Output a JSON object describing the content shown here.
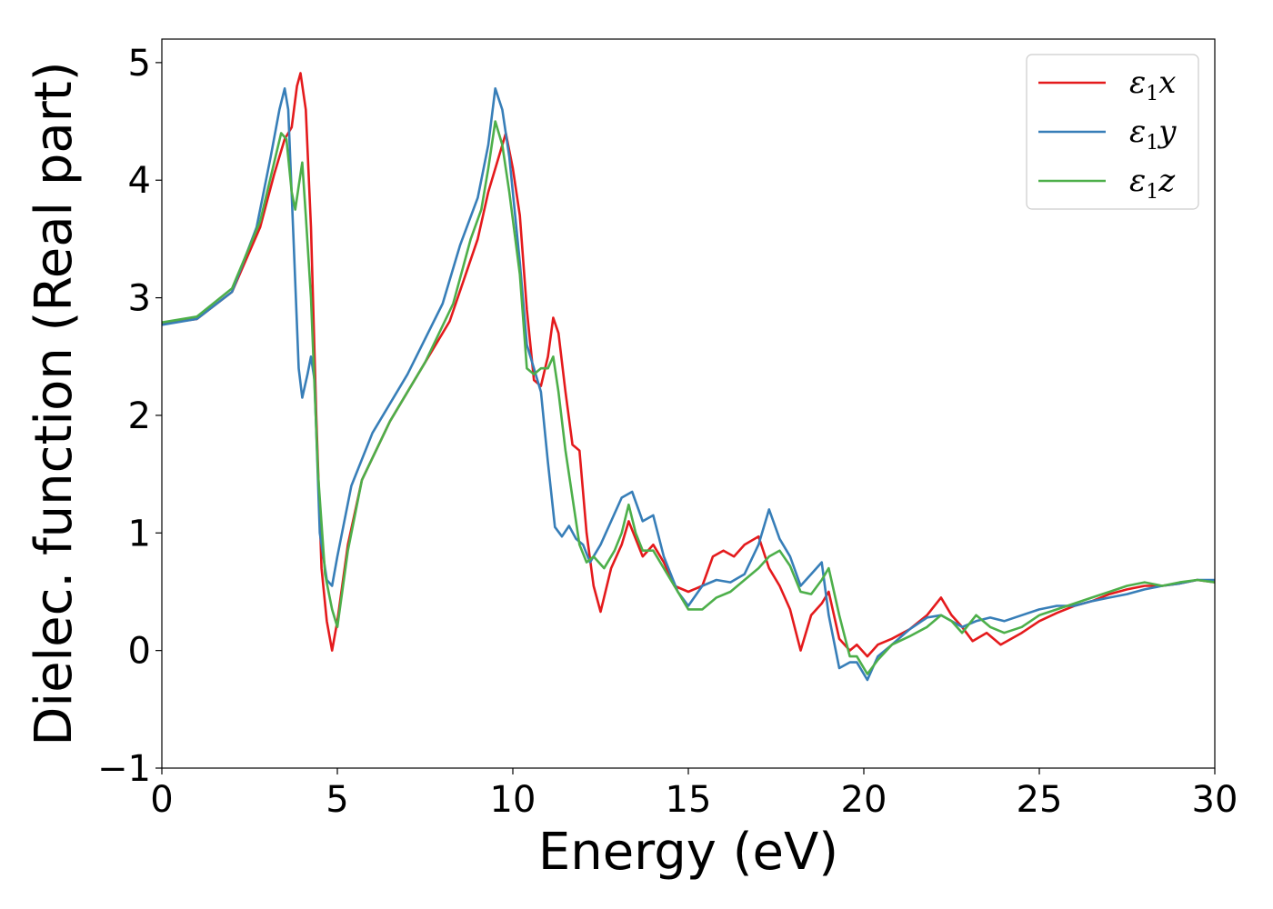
{
  "chart_data": {
    "type": "line",
    "xlabel": "Energy (eV)",
    "ylabel": "Dielec. function (Real part)",
    "xlim": [
      0,
      30
    ],
    "ylim": [
      -1,
      5.2
    ],
    "xticks": [
      0,
      5,
      10,
      15,
      20,
      25,
      30
    ],
    "xtick_labels": [
      "0",
      "5",
      "10",
      "15",
      "20",
      "25",
      "30"
    ],
    "yticks": [
      -1,
      0,
      1,
      2,
      3,
      4,
      5
    ],
    "ytick_labels": [
      "−1",
      "0",
      "1",
      "2",
      "3",
      "4",
      "5"
    ],
    "grid": false,
    "legend_position": "top-right",
    "series": [
      {
        "name": "ε1x",
        "legend": {
          "symbol": "ε",
          "sub": "1",
          "var": "x"
        },
        "color": "#e41a1c",
        "points": [
          [
            0,
            2.78
          ],
          [
            1.0,
            2.82
          ],
          [
            2.0,
            3.05
          ],
          [
            2.8,
            3.6
          ],
          [
            3.2,
            4.05
          ],
          [
            3.5,
            4.35
          ],
          [
            3.7,
            4.45
          ],
          [
            3.85,
            4.8
          ],
          [
            3.95,
            4.91
          ],
          [
            4.1,
            4.6
          ],
          [
            4.25,
            3.6
          ],
          [
            4.4,
            2.0
          ],
          [
            4.55,
            0.7
          ],
          [
            4.7,
            0.25
          ],
          [
            4.85,
            0.0
          ],
          [
            5.0,
            0.25
          ],
          [
            5.3,
            0.9
          ],
          [
            5.7,
            1.45
          ],
          [
            6.5,
            1.95
          ],
          [
            7.5,
            2.45
          ],
          [
            8.2,
            2.8
          ],
          [
            8.6,
            3.15
          ],
          [
            9.0,
            3.5
          ],
          [
            9.3,
            3.9
          ],
          [
            9.6,
            4.2
          ],
          [
            9.8,
            4.4
          ],
          [
            10.0,
            4.1
          ],
          [
            10.2,
            3.7
          ],
          [
            10.4,
            2.9
          ],
          [
            10.6,
            2.3
          ],
          [
            10.8,
            2.25
          ],
          [
            11.0,
            2.5
          ],
          [
            11.15,
            2.83
          ],
          [
            11.3,
            2.7
          ],
          [
            11.5,
            2.2
          ],
          [
            11.7,
            1.75
          ],
          [
            11.9,
            1.7
          ],
          [
            12.1,
            1.0
          ],
          [
            12.3,
            0.55
          ],
          [
            12.5,
            0.33
          ],
          [
            12.8,
            0.7
          ],
          [
            13.1,
            0.9
          ],
          [
            13.3,
            1.1
          ],
          [
            13.5,
            0.95
          ],
          [
            13.7,
            0.8
          ],
          [
            14.0,
            0.9
          ],
          [
            14.3,
            0.75
          ],
          [
            14.6,
            0.55
          ],
          [
            15.0,
            0.5
          ],
          [
            15.4,
            0.55
          ],
          [
            15.7,
            0.8
          ],
          [
            16.0,
            0.85
          ],
          [
            16.3,
            0.8
          ],
          [
            16.6,
            0.9
          ],
          [
            17.0,
            0.97
          ],
          [
            17.3,
            0.7
          ],
          [
            17.6,
            0.55
          ],
          [
            17.9,
            0.35
          ],
          [
            18.2,
            0.0
          ],
          [
            18.5,
            0.3
          ],
          [
            18.8,
            0.4
          ],
          [
            19.0,
            0.5
          ],
          [
            19.3,
            0.1
          ],
          [
            19.6,
            0.0
          ],
          [
            19.8,
            0.05
          ],
          [
            20.1,
            -0.05
          ],
          [
            20.4,
            0.05
          ],
          [
            20.8,
            0.1
          ],
          [
            21.3,
            0.18
          ],
          [
            21.8,
            0.3
          ],
          [
            22.2,
            0.45
          ],
          [
            22.5,
            0.3
          ],
          [
            22.8,
            0.2
          ],
          [
            23.1,
            0.08
          ],
          [
            23.5,
            0.15
          ],
          [
            23.9,
            0.05
          ],
          [
            24.5,
            0.15
          ],
          [
            25.0,
            0.25
          ],
          [
            25.5,
            0.32
          ],
          [
            26.0,
            0.38
          ],
          [
            26.5,
            0.42
          ],
          [
            27.0,
            0.48
          ],
          [
            27.5,
            0.52
          ],
          [
            28.0,
            0.55
          ],
          [
            28.5,
            0.55
          ],
          [
            29.0,
            0.57
          ],
          [
            29.5,
            0.6
          ],
          [
            30.0,
            0.58
          ]
        ]
      },
      {
        "name": "ε1y",
        "legend": {
          "symbol": "ε",
          "sub": "1",
          "var": "y"
        },
        "color": "#377eb8",
        "points": [
          [
            0,
            2.77
          ],
          [
            1.0,
            2.82
          ],
          [
            2.0,
            3.05
          ],
          [
            2.7,
            3.6
          ],
          [
            3.1,
            4.2
          ],
          [
            3.35,
            4.6
          ],
          [
            3.5,
            4.78
          ],
          [
            3.6,
            4.6
          ],
          [
            3.75,
            3.5
          ],
          [
            3.9,
            2.4
          ],
          [
            4.0,
            2.15
          ],
          [
            4.15,
            2.35
          ],
          [
            4.25,
            2.5
          ],
          [
            4.35,
            2.3
          ],
          [
            4.5,
            1.0
          ],
          [
            4.7,
            0.6
          ],
          [
            4.85,
            0.55
          ],
          [
            5.0,
            0.8
          ],
          [
            5.4,
            1.4
          ],
          [
            6.0,
            1.85
          ],
          [
            7.0,
            2.35
          ],
          [
            8.0,
            2.95
          ],
          [
            8.5,
            3.45
          ],
          [
            9.0,
            3.85
          ],
          [
            9.3,
            4.3
          ],
          [
            9.5,
            4.78
          ],
          [
            9.7,
            4.6
          ],
          [
            9.9,
            4.2
          ],
          [
            10.2,
            3.3
          ],
          [
            10.4,
            2.6
          ],
          [
            10.6,
            2.4
          ],
          [
            10.8,
            2.2
          ],
          [
            11.0,
            1.6
          ],
          [
            11.2,
            1.05
          ],
          [
            11.4,
            0.97
          ],
          [
            11.6,
            1.06
          ],
          [
            11.8,
            0.95
          ],
          [
            12.0,
            0.9
          ],
          [
            12.2,
            0.75
          ],
          [
            12.5,
            0.9
          ],
          [
            12.8,
            1.1
          ],
          [
            13.1,
            1.3
          ],
          [
            13.4,
            1.35
          ],
          [
            13.7,
            1.1
          ],
          [
            14.0,
            1.15
          ],
          [
            14.3,
            0.8
          ],
          [
            14.7,
            0.5
          ],
          [
            15.0,
            0.38
          ],
          [
            15.4,
            0.55
          ],
          [
            15.8,
            0.6
          ],
          [
            16.2,
            0.58
          ],
          [
            16.6,
            0.65
          ],
          [
            17.0,
            0.9
          ],
          [
            17.3,
            1.2
          ],
          [
            17.6,
            0.95
          ],
          [
            17.9,
            0.8
          ],
          [
            18.2,
            0.55
          ],
          [
            18.5,
            0.65
          ],
          [
            18.8,
            0.75
          ],
          [
            19.0,
            0.3
          ],
          [
            19.3,
            -0.15
          ],
          [
            19.6,
            -0.1
          ],
          [
            19.8,
            -0.1
          ],
          [
            20.1,
            -0.25
          ],
          [
            20.4,
            -0.05
          ],
          [
            20.8,
            0.05
          ],
          [
            21.3,
            0.18
          ],
          [
            21.8,
            0.28
          ],
          [
            22.2,
            0.3
          ],
          [
            22.5,
            0.25
          ],
          [
            22.8,
            0.2
          ],
          [
            23.2,
            0.25
          ],
          [
            23.6,
            0.28
          ],
          [
            24.0,
            0.25
          ],
          [
            24.5,
            0.3
          ],
          [
            25.0,
            0.35
          ],
          [
            25.5,
            0.38
          ],
          [
            26.0,
            0.38
          ],
          [
            26.5,
            0.42
          ],
          [
            27.0,
            0.45
          ],
          [
            27.5,
            0.48
          ],
          [
            28.0,
            0.52
          ],
          [
            28.5,
            0.55
          ],
          [
            29.0,
            0.57
          ],
          [
            29.5,
            0.6
          ],
          [
            30.0,
            0.6
          ]
        ]
      },
      {
        "name": "ε1z",
        "legend": {
          "symbol": "ε",
          "sub": "1",
          "var": "z"
        },
        "color": "#4daf4a",
        "points": [
          [
            0,
            2.79
          ],
          [
            1.0,
            2.84
          ],
          [
            2.0,
            3.08
          ],
          [
            2.8,
            3.65
          ],
          [
            3.2,
            4.15
          ],
          [
            3.4,
            4.4
          ],
          [
            3.55,
            4.35
          ],
          [
            3.7,
            3.9
          ],
          [
            3.8,
            3.75
          ],
          [
            3.9,
            3.95
          ],
          [
            4.0,
            4.15
          ],
          [
            4.1,
            3.7
          ],
          [
            4.25,
            3.0
          ],
          [
            4.45,
            1.5
          ],
          [
            4.65,
            0.65
          ],
          [
            4.85,
            0.35
          ],
          [
            5.0,
            0.2
          ],
          [
            5.3,
            0.85
          ],
          [
            5.7,
            1.45
          ],
          [
            6.5,
            1.95
          ],
          [
            7.5,
            2.45
          ],
          [
            8.3,
            2.95
          ],
          [
            8.8,
            3.5
          ],
          [
            9.1,
            3.75
          ],
          [
            9.3,
            4.1
          ],
          [
            9.5,
            4.5
          ],
          [
            9.7,
            4.3
          ],
          [
            9.9,
            3.9
          ],
          [
            10.2,
            3.2
          ],
          [
            10.4,
            2.4
          ],
          [
            10.6,
            2.35
          ],
          [
            10.8,
            2.4
          ],
          [
            11.0,
            2.4
          ],
          [
            11.15,
            2.5
          ],
          [
            11.3,
            2.2
          ],
          [
            11.5,
            1.7
          ],
          [
            11.7,
            1.3
          ],
          [
            11.9,
            0.9
          ],
          [
            12.1,
            0.75
          ],
          [
            12.3,
            0.8
          ],
          [
            12.6,
            0.7
          ],
          [
            12.9,
            0.85
          ],
          [
            13.1,
            1.0
          ],
          [
            13.3,
            1.24
          ],
          [
            13.5,
            1.0
          ],
          [
            13.7,
            0.85
          ],
          [
            14.0,
            0.85
          ],
          [
            14.3,
            0.7
          ],
          [
            14.6,
            0.55
          ],
          [
            15.0,
            0.35
          ],
          [
            15.4,
            0.35
          ],
          [
            15.8,
            0.45
          ],
          [
            16.2,
            0.5
          ],
          [
            16.6,
            0.6
          ],
          [
            17.0,
            0.7
          ],
          [
            17.3,
            0.8
          ],
          [
            17.6,
            0.85
          ],
          [
            17.9,
            0.72
          ],
          [
            18.2,
            0.5
          ],
          [
            18.5,
            0.48
          ],
          [
            18.8,
            0.6
          ],
          [
            19.0,
            0.7
          ],
          [
            19.3,
            0.3
          ],
          [
            19.6,
            -0.05
          ],
          [
            19.8,
            -0.05
          ],
          [
            20.1,
            -0.2
          ],
          [
            20.4,
            -0.08
          ],
          [
            20.8,
            0.05
          ],
          [
            21.3,
            0.12
          ],
          [
            21.8,
            0.2
          ],
          [
            22.2,
            0.3
          ],
          [
            22.5,
            0.25
          ],
          [
            22.8,
            0.15
          ],
          [
            23.2,
            0.3
          ],
          [
            23.6,
            0.2
          ],
          [
            24.0,
            0.15
          ],
          [
            24.5,
            0.2
          ],
          [
            25.0,
            0.3
          ],
          [
            25.5,
            0.35
          ],
          [
            26.0,
            0.4
          ],
          [
            26.5,
            0.45
          ],
          [
            27.0,
            0.5
          ],
          [
            27.5,
            0.55
          ],
          [
            28.0,
            0.58
          ],
          [
            28.5,
            0.55
          ],
          [
            29.0,
            0.58
          ],
          [
            29.5,
            0.6
          ],
          [
            30.0,
            0.58
          ]
        ]
      }
    ]
  }
}
